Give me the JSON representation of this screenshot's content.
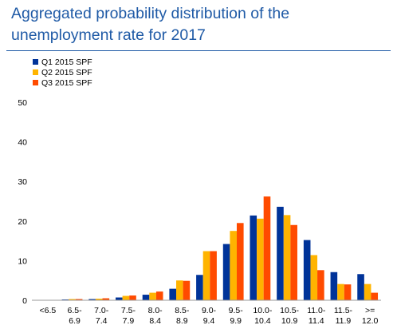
{
  "header": {
    "title_line1": "Aggregated probability distribution of the",
    "title_line2": "unemployment rate for 2017"
  },
  "chart_data": {
    "type": "bar",
    "title": "Aggregated probability distribution of the unemployment rate for 2017",
    "categories": [
      [
        "<6.5"
      ],
      [
        "6.5-",
        "6.9"
      ],
      [
        "7.0-",
        "7.4"
      ],
      [
        "7.5-",
        "7.9"
      ],
      [
        "8.0-",
        "8.4"
      ],
      [
        "8.5-",
        "8.9"
      ],
      [
        "9.0-",
        "9.4"
      ],
      [
        "9.5-",
        "9.9"
      ],
      [
        "10.0-",
        "10.4"
      ],
      [
        "10.5-",
        "10.9"
      ],
      [
        "11.0-",
        "11.4"
      ],
      [
        "11.5-",
        "11.9"
      ],
      [
        ">=",
        "12.0"
      ]
    ],
    "series": [
      {
        "name": "Q1 2015 SPF",
        "color": "#003399",
        "values": [
          0.1,
          0.2,
          0.3,
          0.7,
          1.4,
          2.9,
          6.4,
          14.2,
          21.4,
          23.6,
          15.2,
          7.1,
          6.6
        ]
      },
      {
        "name": "Q2 2015 SPF",
        "color": "#ffb400",
        "values": [
          0.1,
          0.3,
          0.4,
          1.1,
          1.9,
          5.0,
          12.4,
          17.5,
          20.6,
          21.5,
          11.4,
          4.1,
          4.1
        ]
      },
      {
        "name": "Q3 2015 SPF",
        "color": "#ff4b00",
        "values": [
          0.1,
          0.3,
          0.5,
          1.2,
          2.2,
          4.9,
          12.4,
          19.5,
          26.2,
          19.0,
          7.6,
          4.0,
          1.9
        ]
      }
    ],
    "yticks": [
      "0",
      "10",
      "20",
      "30",
      "40",
      "50"
    ],
    "ylim": [
      0,
      50
    ],
    "legend_position": "top-left",
    "grid": false
  }
}
